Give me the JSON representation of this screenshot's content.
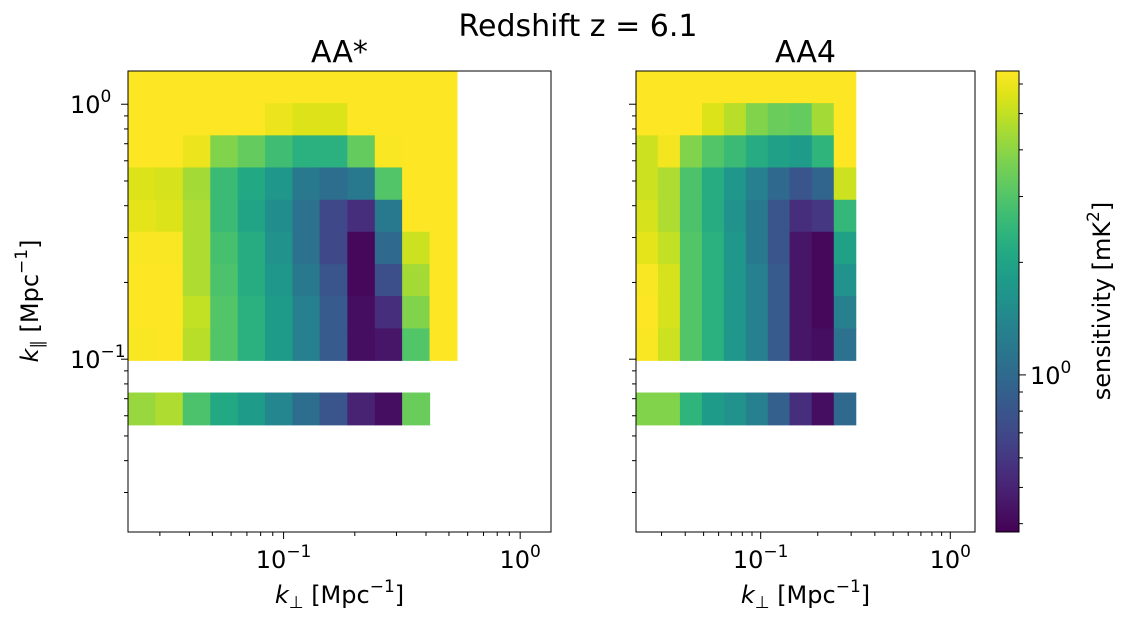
{
  "figure": {
    "suptitle": "Redshift z = 6.1",
    "xlabel": "k",
    "xlabel_sub": "⊥",
    "xlabel_unit": " [Mpc",
    "xlabel_exp": "−1",
    "xlabel_close": "]",
    "ylabel": "k",
    "ylabel_sub": "∥",
    "ylabel_unit": " [Mpc",
    "ylabel_exp": "−1",
    "ylabel_close": "]",
    "colorbar_label": "sensitivity [mK",
    "colorbar_label_exp": "2",
    "colorbar_label_close": "]",
    "colorbar_tick_base": "10",
    "colorbar_tick_exp": "0",
    "x_tick_labels": [
      {
        "base": "10",
        "exp": "−1"
      },
      {
        "base": "10",
        "exp": "0"
      }
    ],
    "y_tick_labels": [
      {
        "base": "10",
        "exp": "0"
      },
      {
        "base": "10",
        "exp": "−1"
      }
    ]
  },
  "chart_data": [
    {
      "type": "heatmap",
      "title": "AA*",
      "x_scale": "log",
      "y_scale": "log",
      "xlim": [
        0.022,
        1.35
      ],
      "ylim": [
        0.021,
        1.35
      ],
      "colorscale": "viridis",
      "color_scale": "log",
      "zlim": [
        0.38,
        6.5
      ],
      "x_bins": [
        0.022,
        0.0287,
        0.0375,
        0.049,
        0.064,
        0.0835,
        0.109,
        0.142,
        0.186,
        0.243,
        0.317,
        0.414,
        0.54
      ],
      "y_bins": [
        1.35,
        1.01,
        0.755,
        0.565,
        0.422,
        0.316,
        0.236,
        0.177,
        0.132,
        0.099,
        0.074,
        0.0553,
        0.0413,
        0.0309,
        0.0231
      ],
      "rows": [
        [
          9,
          9,
          9,
          9,
          9,
          9,
          9,
          9,
          9,
          9,
          9,
          9
        ],
        [
          9,
          9,
          9,
          7.2,
          6.6,
          6.0,
          5.6,
          5.6,
          6.6,
          9,
          9,
          9
        ],
        [
          6.6,
          7.6,
          6.0,
          3.8,
          3.3,
          2.7,
          2.3,
          2.3,
          3.3,
          6.4,
          9,
          9
        ],
        [
          5.6,
          5.4,
          4.4,
          2.6,
          2.1,
          1.7,
          1.2,
          1.05,
          1.2,
          3.0,
          9,
          9
        ],
        [
          5.8,
          5.6,
          4.6,
          2.6,
          2.0,
          1.5,
          1.1,
          0.7,
          0.55,
          1.2,
          7.4,
          9
        ],
        [
          6.4,
          6.4,
          4.6,
          2.8,
          2.2,
          1.6,
          1.1,
          0.7,
          0.4,
          1.0,
          5.2,
          9
        ],
        [
          6.9,
          6.9,
          4.6,
          2.9,
          2.2,
          1.7,
          1.2,
          0.8,
          0.4,
          0.75,
          4.4,
          9
        ],
        [
          6.9,
          6.9,
          5.0,
          3.0,
          2.3,
          1.8,
          1.3,
          0.85,
          0.42,
          0.55,
          3.8,
          9
        ],
        [
          6.4,
          6.6,
          4.8,
          3.0,
          2.3,
          1.8,
          1.3,
          0.85,
          0.42,
          0.45,
          3.0,
          9
        ],
        [
          null,
          null,
          null,
          null,
          null,
          null,
          null,
          null,
          null,
          null,
          null,
          null
        ],
        [
          4.2,
          4.6,
          2.9,
          2.1,
          1.8,
          1.4,
          1.05,
          0.8,
          0.5,
          0.42,
          3.4,
          null
        ],
        [
          null,
          null,
          null,
          null,
          null,
          null,
          null,
          null,
          null,
          null,
          null,
          null
        ],
        [
          null,
          null,
          null,
          null,
          null,
          null,
          null,
          null,
          null,
          null,
          null,
          null
        ],
        [
          null,
          null,
          null,
          null,
          null,
          null,
          null,
          null,
          null,
          null,
          null,
          null
        ]
      ]
    },
    {
      "type": "heatmap",
      "title": "AA4",
      "x_scale": "log",
      "y_scale": "log",
      "xlim": [
        0.022,
        1.35
      ],
      "ylim": [
        0.021,
        1.35
      ],
      "colorscale": "viridis",
      "color_scale": "log",
      "zlim": [
        0.38,
        6.5
      ],
      "x_bins": [
        0.022,
        0.0287,
        0.0375,
        0.049,
        0.064,
        0.0835,
        0.109,
        0.142,
        0.186,
        0.243,
        0.317,
        0.414,
        0.54
      ],
      "y_bins": [
        1.35,
        1.01,
        0.755,
        0.565,
        0.422,
        0.316,
        0.236,
        0.177,
        0.132,
        0.099,
        0.074,
        0.0553,
        0.0413,
        0.0309,
        0.0231
      ],
      "rows": [
        [
          9,
          9,
          9,
          9,
          9,
          9,
          8.0,
          8.0,
          9,
          9,
          null,
          null
        ],
        [
          7.6,
          9,
          6.6,
          5.6,
          4.8,
          3.8,
          3.4,
          3.3,
          4.4,
          6.6,
          null,
          null
        ],
        [
          5.2,
          6.2,
          3.8,
          3.0,
          2.6,
          2.2,
          1.9,
          1.8,
          2.4,
          6.6,
          null,
          null
        ],
        [
          5.2,
          4.6,
          2.9,
          2.2,
          1.7,
          1.3,
          1.0,
          0.8,
          0.95,
          5.2,
          null,
          null
        ],
        [
          5.4,
          4.6,
          2.9,
          2.2,
          1.6,
          1.2,
          0.8,
          0.55,
          0.6,
          2.5,
          null,
          null
        ],
        [
          5.8,
          5.0,
          3.0,
          2.3,
          1.7,
          1.2,
          0.8,
          0.45,
          0.4,
          1.9,
          null,
          null
        ],
        [
          6.4,
          5.4,
          3.0,
          2.3,
          1.7,
          1.3,
          0.85,
          0.45,
          0.4,
          1.6,
          null,
          null
        ],
        [
          6.6,
          5.4,
          3.0,
          2.3,
          1.7,
          1.3,
          0.85,
          0.45,
          0.4,
          1.3,
          null,
          null
        ],
        [
          6.4,
          5.2,
          3.0,
          2.3,
          1.7,
          1.3,
          0.85,
          0.45,
          0.42,
          1.1,
          null,
          null
        ],
        [
          null,
          null,
          null,
          null,
          null,
          null,
          null,
          null,
          null,
          null,
          null,
          null
        ],
        [
          3.8,
          3.8,
          2.4,
          1.8,
          1.6,
          1.3,
          0.9,
          0.55,
          0.42,
          1.0,
          null,
          null
        ],
        [
          null,
          null,
          null,
          null,
          null,
          null,
          null,
          null,
          null,
          null,
          null,
          null
        ],
        [
          null,
          null,
          null,
          null,
          null,
          null,
          null,
          null,
          null,
          null,
          null,
          null
        ],
        [
          null,
          null,
          null,
          null,
          null,
          null,
          null,
          null,
          null,
          null,
          null,
          null
        ]
      ]
    }
  ]
}
